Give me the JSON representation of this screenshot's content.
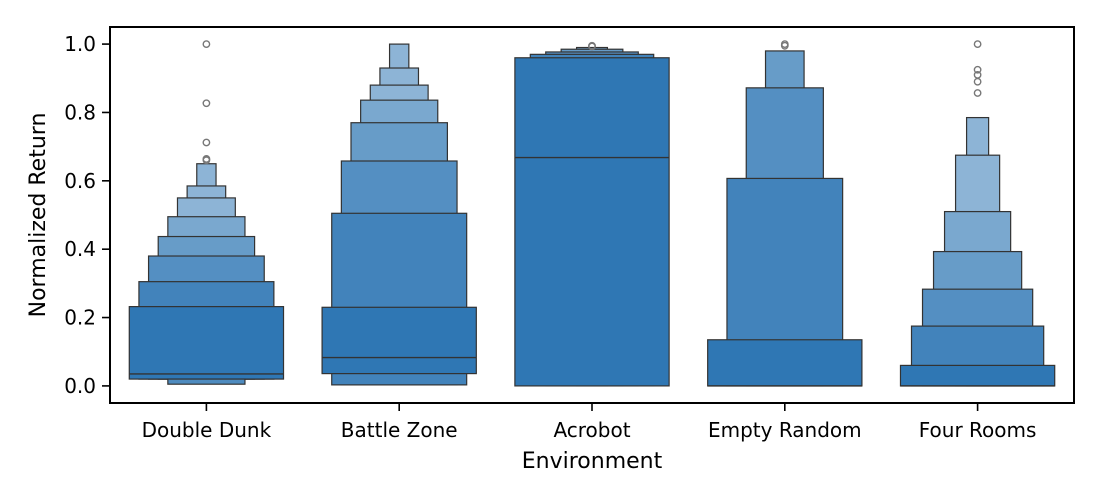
{
  "chart_data": {
    "type": "boxen",
    "xlabel": "Environment",
    "ylabel": "Normalized Return",
    "ylim": [
      -0.05,
      1.05
    ],
    "yticks": [
      0.0,
      0.2,
      0.4,
      0.6,
      0.8,
      1.0
    ],
    "ytick_labels": [
      "0.0",
      "0.2",
      "0.4",
      "0.6",
      "0.8",
      "1.0"
    ],
    "colors": {
      "base": "#2f77b4",
      "edge": "#333333",
      "outlier": "#777777"
    },
    "categories": [
      {
        "name": "Double Dunk",
        "median": 0.035,
        "boxes": [
          {
            "lo": 0.02,
            "hi": 0.232
          },
          {
            "lo": 0.02,
            "hi": 0.305
          },
          {
            "lo": 0.02,
            "hi": 0.38
          },
          {
            "lo": 0.02,
            "hi": 0.437
          },
          {
            "lo": 0.02,
            "hi": 0.495
          },
          {
            "lo": 0.02,
            "hi": 0.55
          },
          {
            "lo": 0.02,
            "hi": 0.585
          },
          {
            "lo": 0.02,
            "hi": 0.65
          }
        ],
        "tail": [
          0.005,
          0.02
        ],
        "outliers": [
          0.66,
          0.664,
          0.712,
          0.827,
          1.0
        ]
      },
      {
        "name": "Battle Zone",
        "median": 0.083,
        "boxes": [
          {
            "lo": 0.036,
            "hi": 0.23
          },
          {
            "lo": 0.003,
            "hi": 0.505
          },
          {
            "lo": 0.003,
            "hi": 0.658
          },
          {
            "lo": 0.003,
            "hi": 0.77
          },
          {
            "lo": 0.003,
            "hi": 0.836
          },
          {
            "lo": 0.003,
            "hi": 0.88
          },
          {
            "lo": 0.003,
            "hi": 0.93
          },
          {
            "lo": 0.003,
            "hi": 1.0
          }
        ],
        "outliers": []
      },
      {
        "name": "Acrobot",
        "median": 0.668,
        "boxes": [
          {
            "lo": 0.0,
            "hi": 0.96
          },
          {
            "lo": 0.0,
            "hi": 0.97
          },
          {
            "lo": 0.0,
            "hi": 0.977
          },
          {
            "lo": 0.0,
            "hi": 0.985
          },
          {
            "lo": 0.0,
            "hi": 0.99
          }
        ],
        "outliers": [
          0.993,
          0.995
        ]
      },
      {
        "name": "Empty Random",
        "median": 0.0,
        "boxes": [
          {
            "lo": 0.0,
            "hi": 0.135
          },
          {
            "lo": 0.0,
            "hi": 0.607
          },
          {
            "lo": 0.0,
            "hi": 0.872
          },
          {
            "lo": 0.0,
            "hi": 0.98
          }
        ],
        "outliers": [
          0.995,
          1.0
        ]
      },
      {
        "name": "Four Rooms",
        "median": 0.0,
        "boxes": [
          {
            "lo": 0.0,
            "hi": 0.06
          },
          {
            "lo": 0.0,
            "hi": 0.175
          },
          {
            "lo": 0.0,
            "hi": 0.283
          },
          {
            "lo": 0.0,
            "hi": 0.393
          },
          {
            "lo": 0.0,
            "hi": 0.51
          },
          {
            "lo": 0.0,
            "hi": 0.675
          },
          {
            "lo": 0.0,
            "hi": 0.785
          }
        ],
        "outliers": [
          0.857,
          0.89,
          0.91,
          0.925,
          1.0
        ]
      }
    ]
  }
}
